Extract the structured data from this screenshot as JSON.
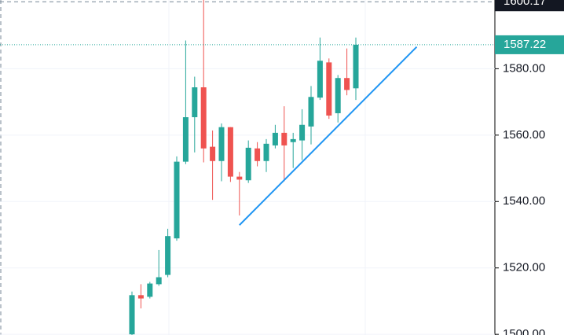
{
  "chart_data": {
    "type": "candlestick",
    "open": [
      1500.0,
      1511.8,
      1511.3,
      1515.1,
      1517.9,
      1528.9,
      1552.0,
      1565.4,
      1574.4,
      1556.5,
      1552.2,
      1562.4,
      1547.5,
      1546.4,
      1556.0,
      1552.2,
      1556.9,
      1560.7,
      1557.9,
      1558.4,
      1562.6,
      1571.3,
      1581.9,
      1566.6,
      1577.2,
      1574.1
    ],
    "high": [
      1512.9,
      1515.1,
      1515.8,
      1525.4,
      1531.8,
      1553.6,
      1588.5,
      1577.6,
      1600.7,
      1561.4,
      1563.5,
      1562.4,
      1548.9,
      1558.4,
      1557.9,
      1558.8,
      1563.1,
      1568.7,
      1560.7,
      1567.8,
      1574.8,
      1589.4,
      1583.1,
      1578.1,
      1586.1,
      1589.4
    ],
    "low": [
      1499.0,
      1507.8,
      1510.8,
      1514.6,
      1517.2,
      1528.2,
      1551.3,
      1554.8,
      1551.8,
      1540.5,
      1546.1,
      1545.9,
      1535.8,
      1545.6,
      1550.6,
      1548.9,
      1556.0,
      1546.1,
      1550.1,
      1552.5,
      1557.2,
      1570.6,
      1564.9,
      1563.8,
      1572.0,
      1570.6
    ],
    "close": [
      1511.8,
      1510.8,
      1515.3,
      1517.2,
      1529.6,
      1552.0,
      1565.4,
      1574.4,
      1556.0,
      1552.2,
      1562.4,
      1547.5,
      1546.6,
      1556.2,
      1552.2,
      1557.4,
      1560.7,
      1556.9,
      1558.8,
      1563.1,
      1571.5,
      1582.4,
      1565.9,
      1577.2,
      1573.6,
      1587.22
    ],
    "up_color": "#26a69a",
    "down_color": "#ef5350",
    "ylim": [
      1499.8,
      1600.7
    ],
    "yticks": [
      {
        "value": 1500,
        "label": "1500.00"
      },
      {
        "value": 1520,
        "label": "1520.00"
      },
      {
        "value": 1540,
        "label": "1540.00"
      },
      {
        "value": 1560,
        "label": "1560.00"
      },
      {
        "value": 1580,
        "label": "1580.00"
      }
    ],
    "grid": true,
    "last_price": 1587.22,
    "crosshair_price": 1600.17,
    "trendline": {
      "x": [
        12,
        31.8
      ],
      "y": [
        1532.9,
        1586.6
      ],
      "color": "#2196f3"
    }
  }
}
